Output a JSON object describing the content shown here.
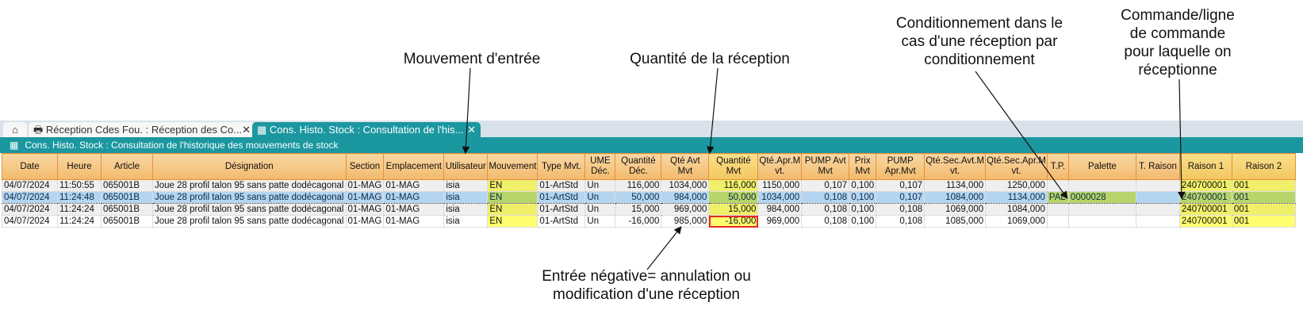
{
  "annotations": {
    "mouvement": "Mouvement d'entrée",
    "quantite": "Quantité de la réception",
    "conditionnement": [
      "Conditionnement dans le",
      "cas d'une réception par",
      "conditionnement"
    ],
    "commande": [
      "Commande/ligne",
      "de commande",
      "pour laquelle on",
      "réceptionne"
    ],
    "negative": [
      "Entrée négative= annulation ou",
      "modification d'une réception"
    ]
  },
  "tabs": [
    {
      "label": "Réception Cdes Fou. : Réception des Co...",
      "icon": "printer-icon"
    },
    {
      "label": "Cons. Histo. Stock : Consultation de l'his...",
      "icon": "boxes-icon"
    }
  ],
  "window_title": "Cons. Histo. Stock : Consultation de l'historique des mouvements de stock",
  "columns": [
    "Date",
    "Heure",
    "Article",
    "Désignation",
    "Section",
    "Emplacement",
    "Utilisateur",
    "Mouvement",
    "Type Mvt.",
    "UME Déc.",
    "Quantité Déc.",
    "Qté Avt Mvt",
    "Quantité Mvt",
    "Qté.Apr.M vt.",
    "PUMP Avt Mvt",
    "Prix Mvt",
    "PUMP Apr.Mvt",
    "Qté.Sec.Avt.M vt.",
    "Qté.Sec.Apr.M vt.",
    "T.P.",
    "Palette",
    "T. Raison",
    "Raison 1",
    "Raison 2"
  ],
  "rows": [
    [
      "04/07/2024",
      "11:50:55",
      "065001B",
      "Joue 28 profil talon 95 sans patte dodécagonal",
      "01-MAG",
      "01-MAG",
      "isia",
      "EN",
      "01-ArtStd",
      "Un",
      "116,000",
      "1034,000",
      "116,000",
      "1150,000",
      "0,107",
      "0,100",
      "0,107",
      "1134,000",
      "1250,000",
      "",
      "",
      "",
      "240700001",
      "001"
    ],
    [
      "04/07/2024",
      "11:24:48",
      "065001B",
      "Joue 28 profil talon 95 sans patte dodécagonal",
      "01-MAG",
      "01-MAG",
      "isia",
      "EN",
      "01-ArtStd",
      "Un",
      "50,000",
      "984,000",
      "50,000",
      "1034,000",
      "0,108",
      "0,100",
      "0,107",
      "1084,000",
      "1134,000",
      "PAL",
      "0000028",
      "",
      "240700001",
      "001"
    ],
    [
      "04/07/2024",
      "11:24:24",
      "065001B",
      "Joue 28 profil talon 95 sans patte dodécagonal",
      "01-MAG",
      "01-MAG",
      "isia",
      "EN",
      "01-ArtStd",
      "Un",
      "15,000",
      "969,000",
      "15,000",
      "984,000",
      "0,108",
      "0,100",
      "0,108",
      "1069,000",
      "1084,000",
      "",
      "",
      "",
      "240700001",
      "001"
    ],
    [
      "04/07/2024",
      "11:24:24",
      "065001B",
      "Joue 28 profil talon 95 sans patte dodécagonal",
      "01-MAG",
      "01-MAG",
      "isia",
      "EN",
      "01-ArtStd",
      "Un",
      "-16,000",
      "985,000",
      "-16,000",
      "969,000",
      "0,108",
      "0,100",
      "0,108",
      "1085,000",
      "1069,000",
      "",
      "",
      "",
      "240700001",
      "001"
    ]
  ],
  "colors": {
    "teal": "#1b97a0",
    "highlight_yellow": "#f0ef6a",
    "selected_blue": "#b4d5f0",
    "selected_green": "#b6d56a",
    "error_red": "#e62828"
  }
}
